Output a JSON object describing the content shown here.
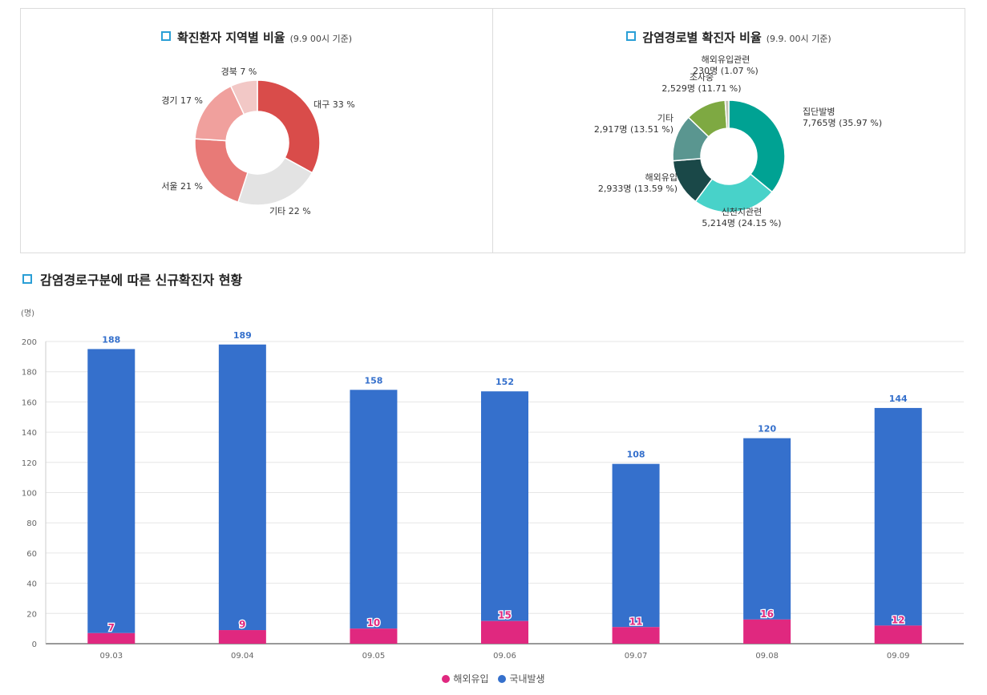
{
  "region_panel": {
    "title": "확진환자 지역별 비율",
    "subtitle": "(9.9 00시 기준)"
  },
  "route_panel": {
    "title": "감염경로별 확진자 비율",
    "subtitle": "(9.9. 00시 기준)"
  },
  "section_title": "감염경로구분에 따른 신규확진자 현황",
  "chart_data": [
    {
      "type": "pie",
      "title": "확진환자 지역별 비율",
      "donut": true,
      "slices": [
        {
          "label": "대구 33 %",
          "value": 33,
          "color": "#d94c4a"
        },
        {
          "label": "기타 22 %",
          "value": 22,
          "color": "#e3e3e3"
        },
        {
          "label": "서울 21 %",
          "value": 21,
          "color": "#e87a77"
        },
        {
          "label": "경기 17 %",
          "value": 17,
          "color": "#f0a09d"
        },
        {
          "label": "경북 7 %",
          "value": 7,
          "color": "#f2c8c6"
        }
      ]
    },
    {
      "type": "pie",
      "title": "감염경로별 확진자 비율",
      "donut": true,
      "slices": [
        {
          "name": "집단발병",
          "detail": "7,765명 (35.97 %)",
          "value": 35.97,
          "color": "#00a293"
        },
        {
          "name": "신천지관련",
          "detail": "5,214명 (24.15 %)",
          "value": 24.15,
          "color": "#48d2c9"
        },
        {
          "name": "해외유입",
          "detail": "2,933명 (13.59 %)",
          "value": 13.59,
          "color": "#1a4848"
        },
        {
          "name": "기타",
          "detail": "2,917명 (13.51 %)",
          "value": 13.51,
          "color": "#5a9690"
        },
        {
          "name": "조사중",
          "detail": "2,529명 (11.71 %)",
          "value": 11.71,
          "color": "#7ea942"
        },
        {
          "name": "해외유입관련",
          "detail": "230명 (1.07 %)",
          "value": 1.07,
          "color": "#c4c4b4"
        }
      ]
    },
    {
      "type": "bar",
      "stacked": true,
      "title": "감염경로구분에 따른 신규확진자 현황",
      "y_unit": "(명)",
      "categories": [
        "09.03",
        "09.04",
        "09.05",
        "09.06",
        "09.07",
        "09.08",
        "09.09"
      ],
      "ylim": [
        0,
        200
      ],
      "y_ticks": [
        0,
        20,
        40,
        60,
        80,
        100,
        120,
        140,
        160,
        180,
        200
      ],
      "grid": true,
      "legend_position": "bottom",
      "series": [
        {
          "name": "해외유입",
          "color": "#e0287f",
          "values": [
            7,
            9,
            10,
            15,
            11,
            16,
            12
          ]
        },
        {
          "name": "국내발생",
          "color": "#3570cc",
          "values": [
            188,
            189,
            158,
            152,
            108,
            120,
            144
          ]
        }
      ]
    }
  ]
}
